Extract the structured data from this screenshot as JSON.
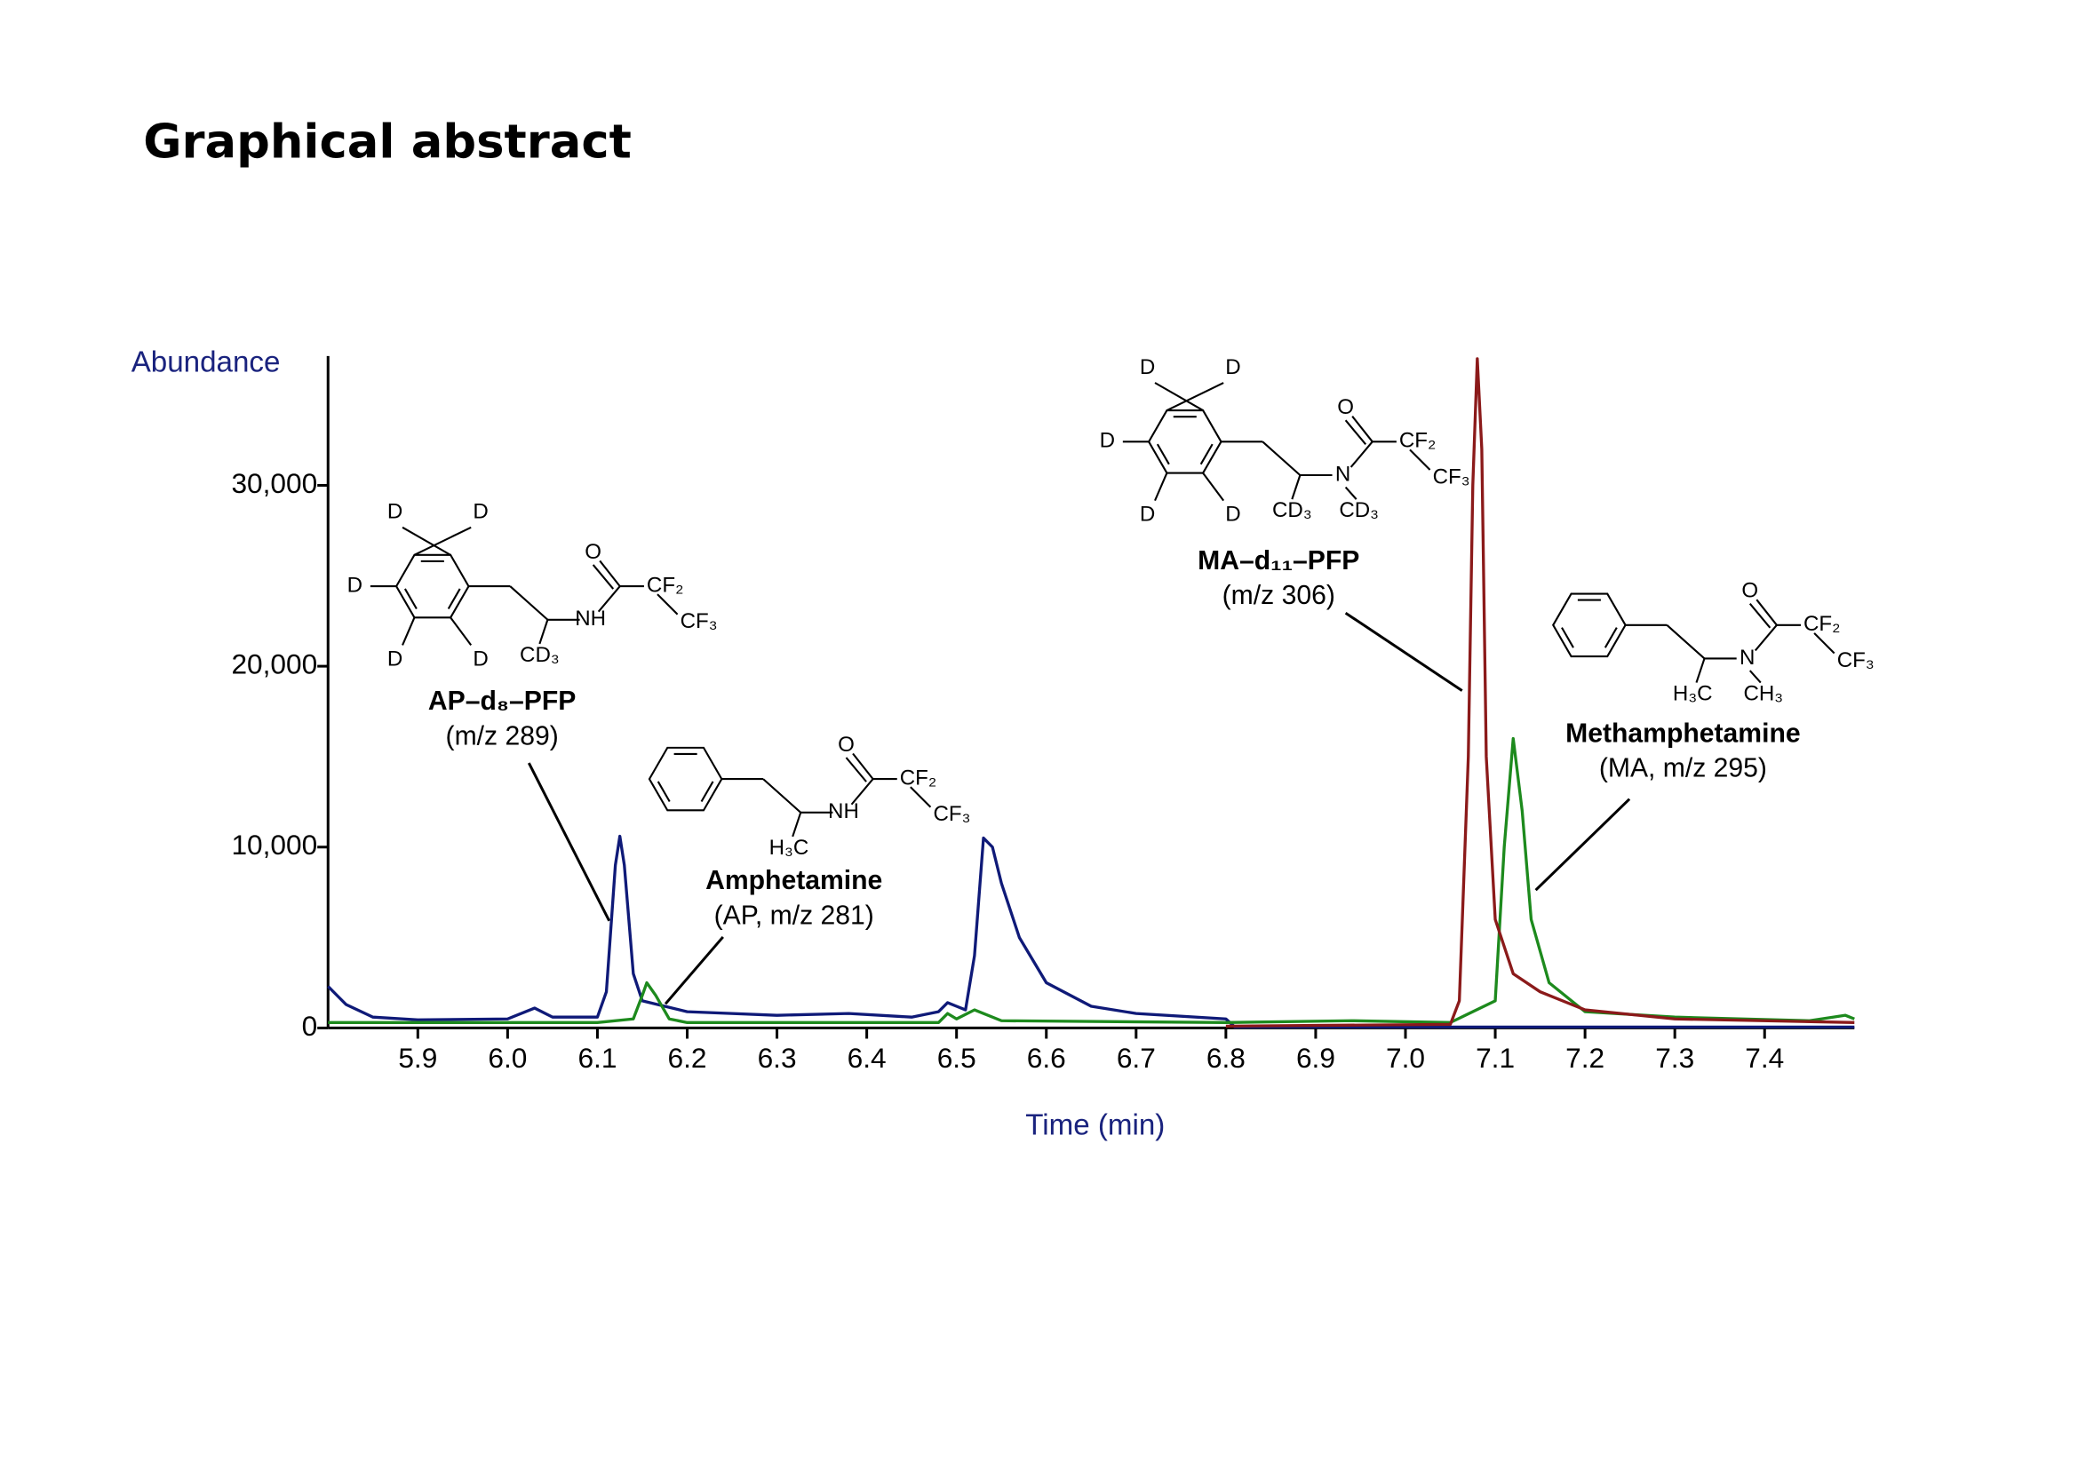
{
  "page_title": "Graphical abstract",
  "chart_data": {
    "type": "line",
    "y_label": "Abundance",
    "x_label": "Time (min)",
    "xlim": [
      5.8,
      7.5
    ],
    "xticks": [
      5.9,
      {
        "value": 6.0,
        "label": "6.0"
      },
      6.1,
      6.2,
      6.3,
      6.4,
      6.5,
      6.6,
      6.7,
      6.8,
      6.9,
      {
        "value": 7.0,
        "label": "7.0"
      },
      7.1,
      7.2,
      7.3,
      7.4
    ],
    "ylim": [
      0,
      37000
    ],
    "yticks": [
      0,
      {
        "value": 10000,
        "label": "10,000"
      },
      {
        "value": 20000,
        "label": "20,000"
      },
      {
        "value": 30000,
        "label": "30,000"
      }
    ],
    "series": [
      {
        "color": "#0f1a78",
        "x": [
          5.8,
          5.82,
          5.85,
          5.9,
          6.0,
          6.03,
          6.05,
          6.1,
          6.11,
          6.12,
          6.125,
          6.13,
          6.14,
          6.15,
          6.2,
          6.3,
          6.38,
          6.45,
          6.48,
          6.49,
          6.5,
          6.51,
          6.52,
          6.53,
          6.54,
          6.55,
          6.57,
          6.6,
          6.65,
          6.7,
          6.8,
          6.81,
          7.5
        ],
        "values": [
          2300,
          1300,
          600,
          450,
          500,
          1100,
          600,
          600,
          2000,
          9000,
          10600,
          9000,
          3000,
          1500,
          900,
          700,
          800,
          600,
          900,
          1400,
          1200,
          1000,
          4000,
          10500,
          10000,
          8000,
          5000,
          2500,
          1200,
          800,
          500,
          50,
          50
        ]
      },
      {
        "color": "#1d8a1d",
        "x": [
          5.8,
          6.1,
          6.14,
          6.15,
          6.155,
          6.165,
          6.18,
          6.2,
          6.48,
          6.49,
          6.5,
          6.52,
          6.55,
          6.8,
          6.94,
          7.05,
          7.1,
          7.11,
          7.12,
          7.13,
          7.14,
          7.16,
          7.2,
          7.3,
          7.45,
          7.49,
          7.5
        ],
        "values": [
          300,
          300,
          500,
          1800,
          2500,
          1800,
          500,
          300,
          300,
          800,
          500,
          1000,
          400,
          300,
          400,
          300,
          1500,
          10000,
          16000,
          12000,
          6000,
          2500,
          900,
          600,
          400,
          700,
          500
        ]
      },
      {
        "color": "#8b1a1a",
        "x": [
          6.8,
          7.05,
          7.06,
          7.07,
          7.075,
          7.08,
          7.085,
          7.09,
          7.1,
          7.12,
          7.15,
          7.2,
          7.3,
          7.5
        ],
        "values": [
          100,
          200,
          1500,
          15000,
          30000,
          37000,
          32000,
          15000,
          6000,
          3000,
          2000,
          1000,
          500,
          300
        ]
      }
    ],
    "annotations": [
      {
        "name": "AP–d₈–PFP",
        "detail": "(m/z 289)",
        "atoms": [
          "D",
          "D",
          "D",
          "D",
          "D",
          "O",
          "NH",
          "CF₂",
          "CF₃",
          "CD₃"
        ]
      },
      {
        "name": "Amphetamine",
        "detail": "(AP, m/z 281)",
        "atoms": [
          "O",
          "NH",
          "CF₂",
          "CF₃",
          "H₃C"
        ]
      },
      {
        "name": "MA–d₁₁–PFP",
        "detail": "(m/z 306)",
        "atoms": [
          "D",
          "D",
          "D",
          "D",
          "D",
          "O",
          "N",
          "CF₂",
          "CF₃",
          "CD₃",
          "CD₃"
        ]
      },
      {
        "name": "Methamphetamine",
        "detail": "(MA, m/z 295)",
        "atoms": [
          "O",
          "N",
          "CF₂",
          "CF₃",
          "H₃C",
          "CH₃"
        ]
      }
    ]
  }
}
